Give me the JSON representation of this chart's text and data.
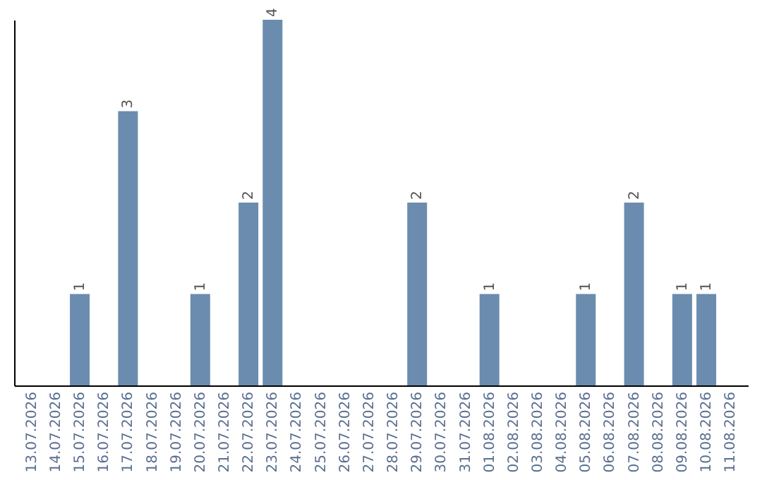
{
  "chart_data": {
    "type": "bar",
    "categories": [
      "13.07.2026",
      "14.07.2026",
      "15.07.2026",
      "16.07.2026",
      "17.07.2026",
      "18.07.2026",
      "19.07.2026",
      "20.07.2026",
      "21.07.2026",
      "22.07.2026",
      "23.07.2026",
      "24.07.2026",
      "25.07.2026",
      "26.07.2026",
      "27.07.2026",
      "28.07.2026",
      "29.07.2026",
      "30.07.2026",
      "31.07.2026",
      "01.08.2026",
      "02.08.2026",
      "03.08.2026",
      "04.08.2026",
      "05.08.2026",
      "06.08.2026",
      "07.08.2026",
      "08.08.2026",
      "09.08.2026",
      "10.08.2026",
      "11.08.2026"
    ],
    "values": [
      null,
      null,
      1,
      null,
      3,
      null,
      null,
      1,
      null,
      2,
      4,
      null,
      null,
      null,
      null,
      null,
      2,
      null,
      null,
      1,
      null,
      null,
      null,
      1,
      null,
      2,
      null,
      1,
      1,
      null
    ],
    "color": "#6b8cae",
    "data_labels": true,
    "tick_labels": "x"
  }
}
